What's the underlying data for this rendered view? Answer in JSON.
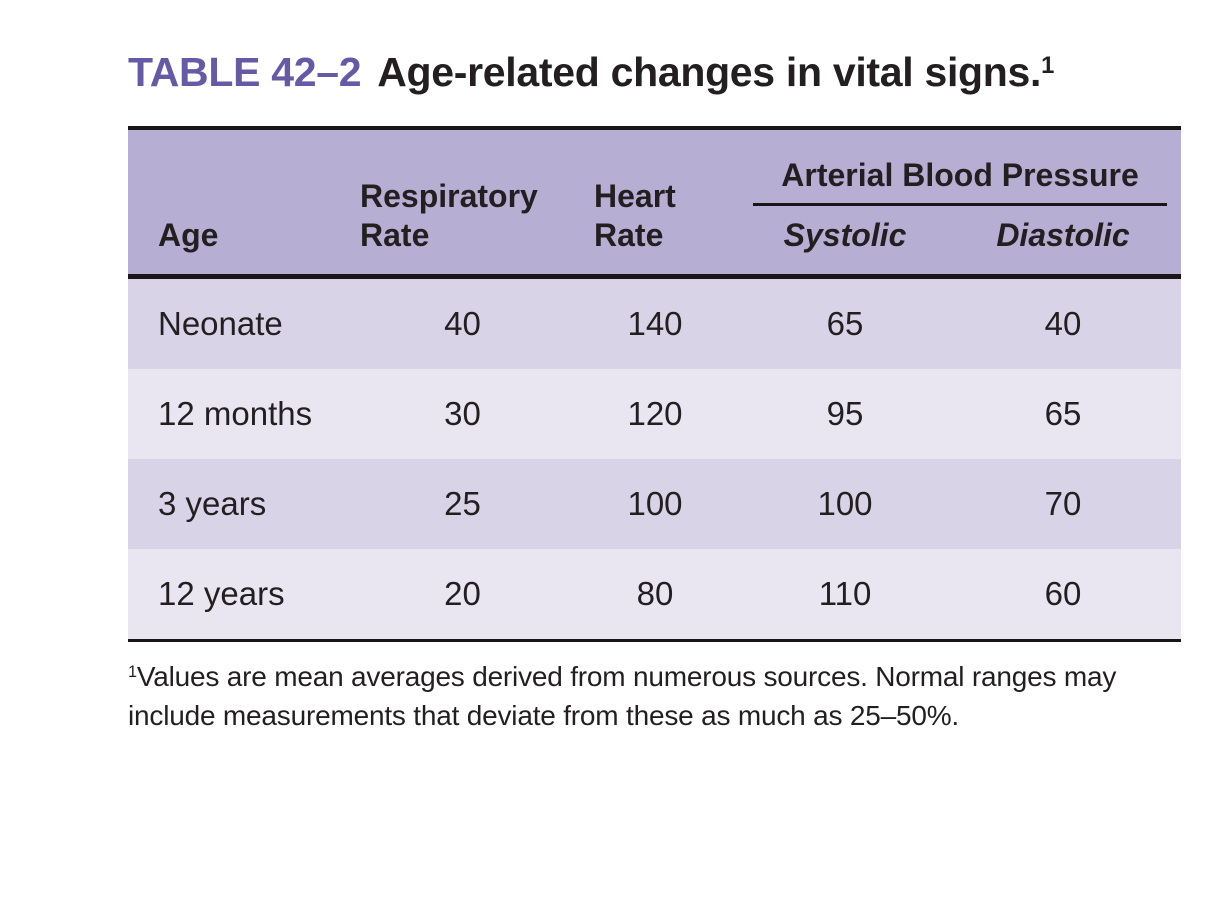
{
  "title": {
    "table_label": "TABLE 42–2",
    "text": "Age-related changes in vital signs.",
    "superscript": "1"
  },
  "table": {
    "header": {
      "age": "Age",
      "respiratory_rate": "Respiratory Rate",
      "heart_rate": "Heart Rate",
      "blood_pressure_group": "Arterial Blood Pressure",
      "systolic": "Systolic",
      "diastolic": "Diastolic"
    },
    "rows": [
      {
        "age": "Neonate",
        "respiratory_rate": "40",
        "heart_rate": "140",
        "systolic": "65",
        "diastolic": "40"
      },
      {
        "age": "12 months",
        "respiratory_rate": "30",
        "heart_rate": "120",
        "systolic": "95",
        "diastolic": "65"
      },
      {
        "age": "3 years",
        "respiratory_rate": "25",
        "heart_rate": "100",
        "systolic": "100",
        "diastolic": "70"
      },
      {
        "age": "12 years",
        "respiratory_rate": "20",
        "heart_rate": "80",
        "systolic": "110",
        "diastolic": "60"
      }
    ]
  },
  "footnote": {
    "superscript": "1",
    "text": "Values are mean averages derived from numerous sources. Normal ranges may include measurements that deviate from these as much as 25–50%."
  },
  "colors": {
    "accent_purple": "#645aa5",
    "header_bg": "#b7aed4",
    "row_dark": "#d9d3e7",
    "row_light": "#e9e6f2",
    "text_black": "#231f20"
  }
}
